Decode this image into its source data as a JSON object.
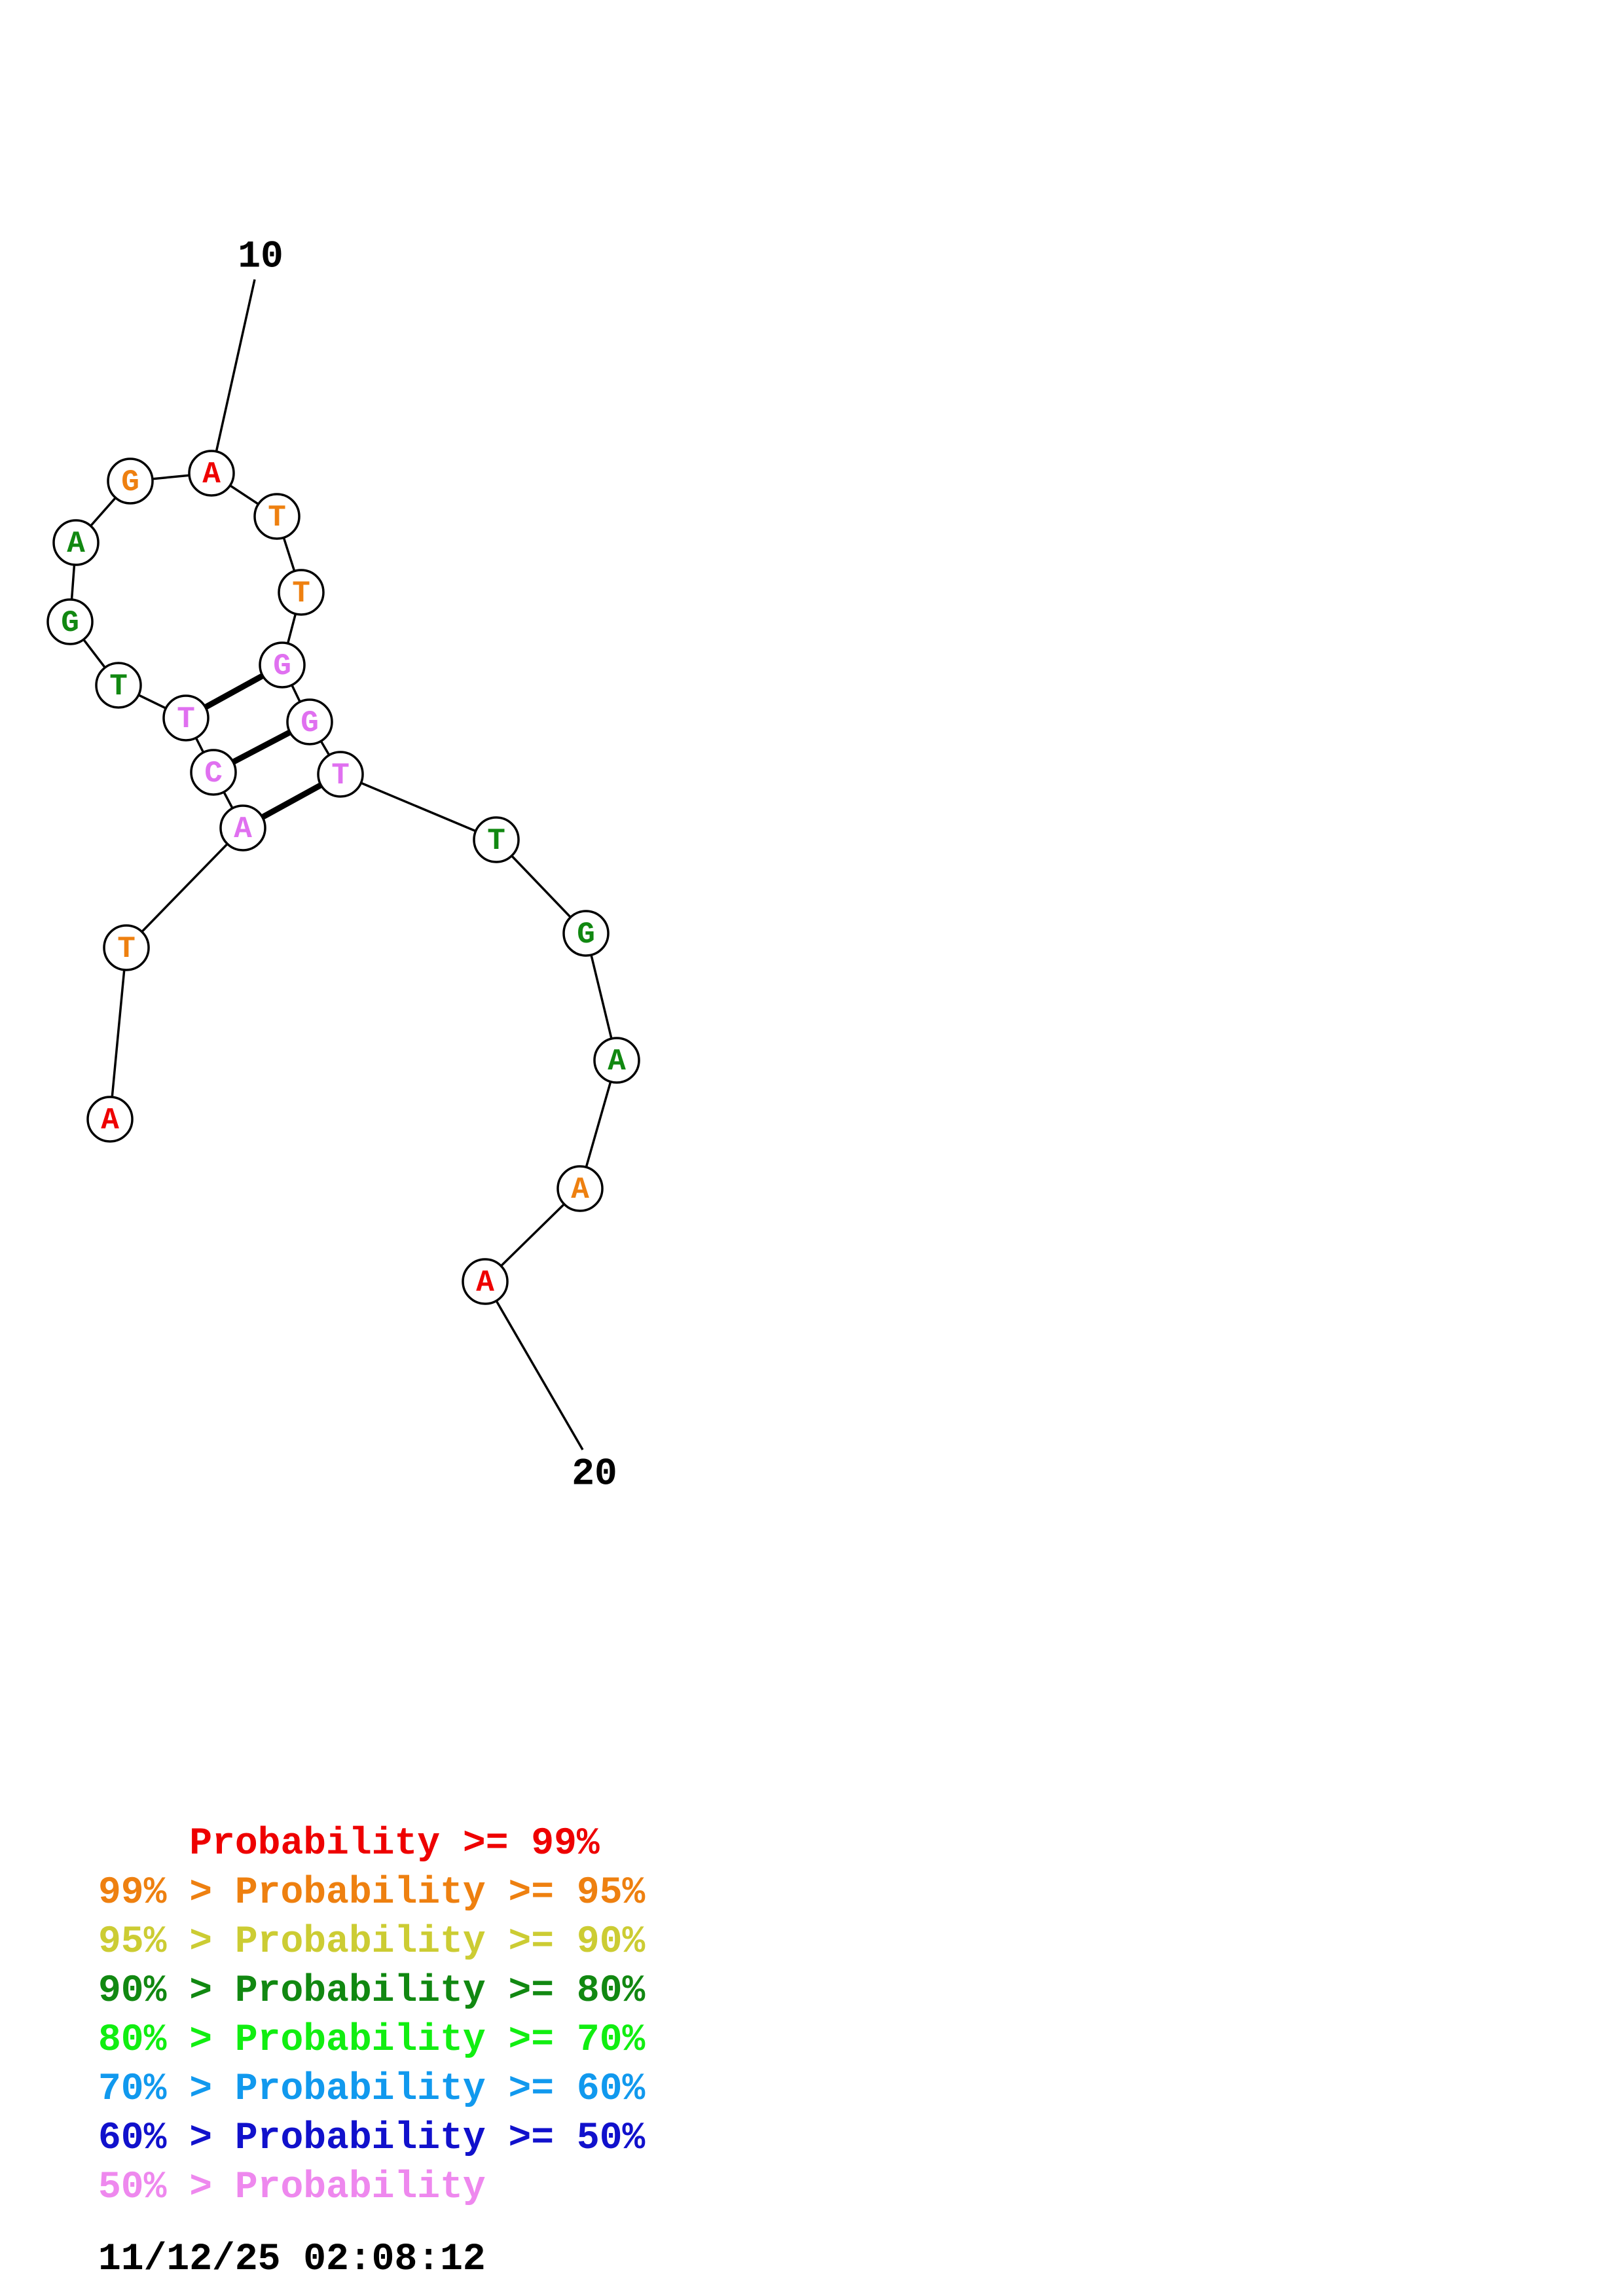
{
  "diagram": {
    "nucleotides": [
      {
        "base": "A",
        "color": "#ee0000"
      },
      {
        "base": "T",
        "color": "#ee8010"
      },
      {
        "base": "A",
        "color": "#e070f0"
      },
      {
        "base": "C",
        "color": "#e070f0"
      },
      {
        "base": "T",
        "color": "#e070f0"
      },
      {
        "base": "T",
        "color": "#118811"
      },
      {
        "base": "G",
        "color": "#118811"
      },
      {
        "base": "A",
        "color": "#118811"
      },
      {
        "base": "G",
        "color": "#ee8010"
      },
      {
        "base": "A",
        "color": "#ee0000"
      },
      {
        "base": "T",
        "color": "#ee8010"
      },
      {
        "base": "T",
        "color": "#ee8010"
      },
      {
        "base": "G",
        "color": "#e070f0"
      },
      {
        "base": "G",
        "color": "#e070f0"
      },
      {
        "base": "T",
        "color": "#e070f0"
      },
      {
        "base": "T",
        "color": "#118811"
      },
      {
        "base": "G",
        "color": "#118811"
      },
      {
        "base": "A",
        "color": "#118811"
      },
      {
        "base": "A",
        "color": "#ee8010"
      },
      {
        "base": "A",
        "color": "#ee0000"
      }
    ],
    "base_pairs": [
      [
        3,
        15
      ],
      [
        4,
        14
      ],
      [
        5,
        13
      ]
    ],
    "position_labels": [
      {
        "position": 10,
        "text": "10"
      },
      {
        "position": 20,
        "text": "20"
      }
    ]
  },
  "legend": {
    "lines": [
      {
        "prefix": "    ",
        "text": "Probability >= 99%",
        "color": "#ee0000"
      },
      {
        "prefix": "",
        "text": "99% > Probability >= 95%",
        "color": "#ee8010"
      },
      {
        "prefix": "",
        "text": "95% > Probability >= 90%",
        "color": "#cccc33"
      },
      {
        "prefix": "",
        "text": "90% > Probability >= 80%",
        "color": "#118811"
      },
      {
        "prefix": "",
        "text": "80% > Probability >= 70%",
        "color": "#11ee11"
      },
      {
        "prefix": "",
        "text": "70% > Probability >= 60%",
        "color": "#1199ee"
      },
      {
        "prefix": "",
        "text": "60% > Probability >= 50%",
        "color": "#1111cc"
      },
      {
        "prefix": "",
        "text": "50% > Probability",
        "color": "#ee88ee"
      }
    ],
    "timestamp": "11/12/25 02:08:12"
  }
}
